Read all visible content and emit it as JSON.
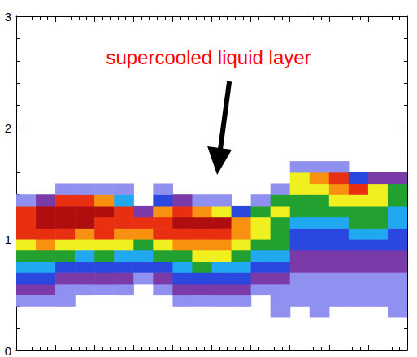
{
  "chart_data": {
    "type": "contour",
    "annotations": [
      {
        "text": "supercooled liquid layer",
        "color": "#ff0000"
      }
    ],
    "xlim": [
      0,
      100
    ],
    "xticks": [
      0,
      10,
      20,
      30,
      40,
      50,
      60,
      70,
      80,
      90,
      100
    ],
    "ylim": [
      0,
      3
    ],
    "yticks": [
      0,
      1,
      2,
      3
    ],
    "tick_labels": "y",
    "grid": false,
    "x": [
      2.5,
      7.5,
      12.5,
      17.5,
      22.5,
      27.5,
      32.5,
      37.5,
      42.5,
      47.5,
      52.5,
      57.5,
      62.5,
      67.5,
      72.5,
      77.5,
      82.5,
      87.5,
      92.5,
      97.5
    ],
    "y": [
      0.35,
      0.45,
      0.55,
      0.65,
      0.75,
      0.85,
      0.95,
      1.05,
      1.15,
      1.25,
      1.35,
      1.45,
      1.55,
      1.65,
      1.75,
      1.85,
      1.95
    ],
    "cells_by_x": [
      [
        0,
        1,
        2,
        3,
        4,
        5,
        6,
        8,
        8,
        8,
        1,
        0,
        0,
        0,
        0,
        0,
        0
      ],
      [
        0,
        1,
        2,
        3,
        4,
        5,
        7,
        8,
        9,
        9,
        2,
        0,
        0,
        0,
        0,
        0,
        0
      ],
      [
        0,
        1,
        1,
        2,
        3,
        5,
        6,
        8,
        9,
        9,
        8,
        1,
        0,
        0,
        0,
        0,
        0
      ],
      [
        0,
        0,
        1,
        2,
        3,
        4,
        6,
        7,
        9,
        9,
        8,
        1,
        0,
        0,
        0,
        0,
        0
      ],
      [
        0,
        0,
        1,
        2,
        3,
        5,
        6,
        8,
        8,
        9,
        7,
        1,
        0,
        0,
        0,
        0,
        0
      ],
      [
        0,
        0,
        1,
        2,
        3,
        4,
        6,
        7,
        8,
        8,
        4,
        1,
        0,
        0,
        0,
        0,
        0
      ],
      [
        0,
        0,
        0,
        1,
        3,
        4,
        5,
        7,
        8,
        2,
        0,
        0,
        0,
        0,
        0,
        0,
        0
      ],
      [
        0,
        0,
        1,
        2,
        3,
        5,
        6,
        8,
        8,
        7,
        3,
        1,
        0,
        0,
        0,
        0,
        0
      ],
      [
        0,
        1,
        2,
        3,
        4,
        5,
        7,
        8,
        9,
        8,
        2,
        0,
        0,
        0,
        0,
        0,
        0
      ],
      [
        0,
        1,
        2,
        3,
        5,
        6,
        7,
        8,
        9,
        7,
        1,
        0,
        0,
        0,
        0,
        0,
        0
      ],
      [
        0,
        1,
        2,
        3,
        4,
        6,
        7,
        8,
        9,
        6,
        1,
        0,
        0,
        0,
        0,
        0,
        0
      ],
      [
        0,
        1,
        2,
        3,
        4,
        5,
        6,
        7,
        7,
        3,
        0,
        0,
        0,
        0,
        0,
        0,
        0
      ],
      [
        0,
        0,
        1,
        2,
        3,
        4,
        5,
        6,
        6,
        5,
        1,
        0,
        0,
        0,
        0,
        0,
        0
      ],
      [
        1,
        1,
        1,
        2,
        3,
        4,
        5,
        5,
        5,
        6,
        5,
        1,
        0,
        0,
        0,
        0,
        0
      ],
      [
        0,
        1,
        1,
        1,
        2,
        2,
        3,
        3,
        4,
        5,
        5,
        6,
        6,
        1,
        0,
        0,
        0
      ],
      [
        1,
        1,
        1,
        1,
        2,
        2,
        3,
        3,
        4,
        5,
        5,
        6,
        7,
        1,
        0,
        0,
        0
      ],
      [
        0,
        1,
        1,
        1,
        2,
        2,
        3,
        3,
        4,
        5,
        6,
        7,
        8,
        1,
        0,
        0,
        0
      ],
      [
        0,
        1,
        1,
        1,
        2,
        2,
        3,
        4,
        5,
        5,
        6,
        8,
        3,
        0,
        0,
        0,
        0
      ],
      [
        0,
        1,
        1,
        1,
        2,
        2,
        3,
        4,
        5,
        5,
        6,
        6,
        2,
        0,
        0,
        0,
        0
      ],
      [
        1,
        1,
        1,
        1,
        2,
        2,
        3,
        3,
        4,
        4,
        5,
        5,
        2,
        0,
        0,
        0,
        0
      ]
    ],
    "level_colors": [
      "#9090f0",
      "#7a3aa8",
      "#2a48e0",
      "#20a8f0",
      "#22a030",
      "#f0f020",
      "#f89010",
      "#e83010",
      "#b00e0e"
    ]
  }
}
